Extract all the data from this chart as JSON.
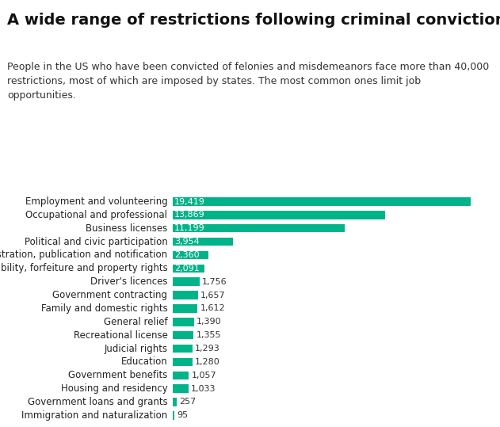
{
  "title": "A wide range of restrictions following criminal convictions",
  "subtitle": "People in the US who have been convicted of felonies and misdemeanors face more than 40,000\nrestrictions, most of which are imposed by states. The most common ones limit job\nopportunities.",
  "categories": [
    "Employment and volunteering",
    "Occupational and professional",
    "Business licenses",
    "Political and civic participation",
    "Registration, publication and notification",
    "Civil fines, liability, forfeiture and property rights",
    "Driver's licences",
    "Government contracting",
    "Family and domestic rights",
    "General relief",
    "Recreational license",
    "Judicial rights",
    "Education",
    "Government benefits",
    "Housing and residency",
    "Government loans and grants",
    "Immigration and naturalization"
  ],
  "values": [
    19419,
    13869,
    11199,
    3954,
    2360,
    2091,
    1756,
    1657,
    1612,
    1390,
    1355,
    1293,
    1280,
    1057,
    1033,
    257,
    95
  ],
  "value_labels": [
    "19,419",
    "13,869",
    "11,199",
    "3,954",
    "2,360",
    "2,091",
    "1,756",
    "1,657",
    "1,612",
    "1,390",
    "1,355",
    "1,293",
    "1,280",
    "1,057",
    "1,033",
    "257",
    "95"
  ],
  "bar_color": "#00b388",
  "label_color_inside": "#ffffff",
  "label_color_outside": "#333333",
  "threshold_inside": 2091,
  "background_color": "#ffffff",
  "title_fontsize": 14,
  "subtitle_fontsize": 9,
  "label_fontsize": 8,
  "category_fontsize": 8.5,
  "xlim": [
    0,
    21000
  ]
}
